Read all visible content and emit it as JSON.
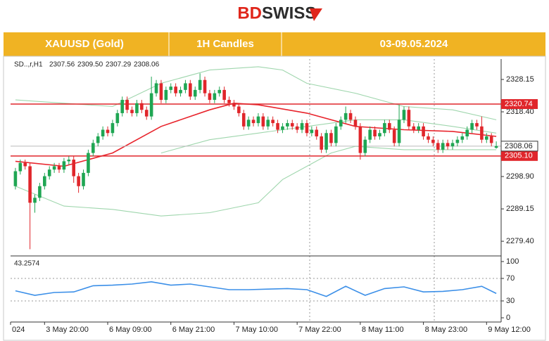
{
  "header": {
    "brand": [
      "BD",
      "SWISS"
    ],
    "cells": [
      "XAUUSD (Gold)",
      "1H Candles",
      "03-09.05.2024"
    ]
  },
  "chart_data": {
    "type": "candlestick",
    "symbol_label": "SD..,r,H1",
    "last_candle_label": [
      "2307.56",
      "2309.50",
      "2307.29",
      "2308.06"
    ],
    "up_color": "#1fa653",
    "down_color": "#e0262b",
    "xlim": [
      -1,
      100
    ],
    "xticks": [
      {
        "value": -1,
        "label": "024"
      },
      {
        "value": 6,
        "label": "3 May 20:00"
      },
      {
        "value": 19,
        "label": "6 May 09:00"
      },
      {
        "value": 32,
        "label": "6 May 21:00"
      },
      {
        "value": 45,
        "label": "7 May 10:00"
      },
      {
        "value": 58,
        "label": "7 May 22:00"
      },
      {
        "value": 71,
        "label": "8 May 11:00"
      },
      {
        "value": 84,
        "label": "8 May 23:00"
      },
      {
        "value": 97,
        "label": "9 May 12:00"
      }
    ],
    "ylim": [
      2275.4,
      2334.3
    ],
    "yticks": [
      2328.15,
      {
        "value": 2318.4,
        "label": "2318.40"
      },
      {
        "value": 2298.9,
        "label": "2298.90"
      },
      2289.15,
      {
        "value": 2279.4,
        "label": "2279.40"
      }
    ],
    "levels": [
      2320.74,
      {
        "value": 2305.1,
        "label": "2305.10"
      }
    ],
    "level_color": "#e0262b",
    "open": [
      2296,
      2300.5,
      2303,
      2302,
      2291,
      2292.5,
      2296,
      2299,
      2301,
      2302,
      2301,
      2303.5,
      2304,
      2299,
      2296,
      2300,
      2306,
      2309,
      2311,
      2313,
      2312,
      2315,
      2318,
      2322,
      2319,
      2318,
      2321,
      2319,
      2317,
      2324,
      2327,
      2322,
      2325,
      2326,
      2324,
      2325,
      2327,
      2323,
      2325,
      2328,
      2324,
      2322,
      2324,
      2325,
      2322,
      2321,
      2320,
      2318,
      2314,
      2316,
      2315,
      2317,
      2314,
      2316,
      2315,
      2313,
      2314,
      2315,
      2314,
      2313,
      2315,
      2312,
      2313,
      2311,
      2307,
      2312,
      2309,
      2314,
      2316,
      2318,
      2316,
      2314,
      2306,
      2310,
      2313,
      2311,
      2312,
      2315,
      2313,
      2309,
      2316,
      2319,
      2314,
      2313,
      2314,
      2311,
      2310,
      2309,
      2307,
      2309,
      2308,
      2309,
      2310,
      2311,
      2313,
      2315,
      2314,
      2310,
      2311,
      2307.56
    ],
    "high": [
      2301.5,
      2304,
      2304,
      2303,
      2293.5,
      2297,
      2300,
      2302,
      2303,
      2303,
      2304.5,
      2305,
      2305,
      2300,
      2301,
      2307,
      2310,
      2312,
      2314,
      2314,
      2316,
      2319,
      2323,
      2323,
      2320,
      2322,
      2322,
      2320,
      2329,
      2328,
      2328,
      2326,
      2327,
      2327,
      2326,
      2328,
      2328,
      2326,
      2330,
      2329,
      2325,
      2325,
      2326,
      2326,
      2323,
      2322,
      2321,
      2319,
      2317,
      2317,
      2318,
      2318,
      2317,
      2317,
      2316,
      2315,
      2316,
      2316,
      2315,
      2316,
      2316,
      2314,
      2314,
      2312,
      2313,
      2313,
      2315,
      2317,
      2320,
      2319,
      2317,
      2315,
      2311,
      2314,
      2314,
      2313,
      2316,
      2316,
      2314,
      2320.5,
      2320,
      2320,
      2315,
      2315,
      2315,
      2312,
      2311,
      2310,
      2310,
      2310,
      2310,
      2311,
      2312,
      2314,
      2316,
      2316,
      2317,
      2312,
      2312,
      2309.5
    ],
    "low": [
      2295,
      2299.5,
      2301,
      2277,
      2288,
      2291.5,
      2295,
      2298,
      2300,
      2300,
      2300,
      2302.5,
      2297,
      2294,
      2295,
      2299,
      2305,
      2308,
      2310,
      2311,
      2311,
      2314,
      2317,
      2318,
      2317,
      2317,
      2318,
      2316,
      2316,
      2323,
      2321,
      2321,
      2324,
      2323,
      2323,
      2324,
      2322,
      2322,
      2324,
      2323,
      2321,
      2321,
      2323,
      2321,
      2320,
      2319,
      2317,
      2313,
      2313,
      2314,
      2314,
      2313,
      2313,
      2314,
      2312,
      2312,
      2313,
      2313,
      2312,
      2312,
      2311,
      2311,
      2310,
      2306,
      2306,
      2308,
      2308,
      2313,
      2315,
      2315,
      2313,
      2304,
      2305,
      2309,
      2310,
      2310,
      2311,
      2312,
      2308,
      2308,
      2315,
      2313,
      2312,
      2312,
      2310,
      2309,
      2308,
      2306,
      2306,
      2307,
      2307,
      2308,
      2309,
      2310,
      2312,
      2313,
      2309,
      2309,
      2308,
      2307.29
    ],
    "close": [
      2300.5,
      2303,
      2302,
      2291,
      2292.5,
      2296,
      2299,
      2301,
      2302,
      2301,
      2303.5,
      2304,
      2299,
      2296,
      2300,
      2306,
      2309,
      2311,
      2313,
      2312,
      2315,
      2318,
      2322,
      2319,
      2318,
      2321,
      2319,
      2317,
      2324,
      2327,
      2322,
      2325,
      2326,
      2324,
      2325,
      2327,
      2323,
      2325,
      2328,
      2324,
      2322,
      2324,
      2325,
      2322,
      2321,
      2320,
      2318,
      2314,
      2316,
      2315,
      2317,
      2314,
      2316,
      2315,
      2313,
      2314,
      2315,
      2314,
      2313,
      2315,
      2312,
      2313,
      2311,
      2307,
      2312,
      2309,
      2314,
      2316,
      2318,
      2316,
      2314,
      2306,
      2310,
      2313,
      2311,
      2312,
      2315,
      2313,
      2309,
      2316,
      2319,
      2314,
      2313,
      2314,
      2311,
      2310,
      2309,
      2307,
      2309,
      2308,
      2309,
      2310,
      2311,
      2313,
      2315,
      2314,
      2310,
      2311,
      2309,
      2308.06
    ],
    "overlays": [
      {
        "color": "#9fd6ad",
        "x": [
          0,
          10,
          20,
          30,
          40,
          50,
          55,
          60,
          70,
          80,
          90,
          99
        ],
        "values": [
          2322,
          2321,
          2320,
          2327,
          2331,
          2332,
          2331,
          2327,
          2324,
          2320,
          2319,
          2316
        ]
      },
      {
        "color": "#9fd6ad",
        "x": [
          30,
          40,
          50,
          60,
          70,
          80,
          90,
          99
        ],
        "values": [
          2306,
          2310,
          2312,
          2314,
          2316,
          2316,
          2314,
          2312
        ]
      },
      {
        "color": "#9fd6ad",
        "x": [
          0,
          10,
          20,
          30,
          40,
          50,
          55,
          60,
          65,
          70,
          80,
          90,
          99
        ],
        "values": [
          2296,
          2290,
          2289,
          2287,
          2288,
          2291,
          2298,
          2302,
          2306,
          2308,
          2307,
          2307,
          2307
        ]
      },
      {
        "color": "#e8242c",
        "x": [
          0,
          10,
          20,
          30,
          40,
          45,
          50,
          60,
          70,
          80,
          90,
          99
        ],
        "values": [
          2303.5,
          2302,
          2306,
          2314,
          2319,
          2321,
          2320.5,
          2318,
          2314,
          2313,
          2312.5,
          2311
        ]
      }
    ],
    "rsi": {
      "color": "#3b8fe8",
      "ylim": [
        -7.5,
        107.5
      ],
      "yticks": [
        100,
        70,
        30,
        0
      ],
      "x": [
        0,
        4,
        8,
        12,
        16,
        20,
        24,
        28,
        32,
        36,
        40,
        44,
        48,
        52,
        56,
        60,
        64,
        68,
        72,
        76,
        80,
        84,
        88,
        92,
        96,
        99
      ],
      "values": [
        48,
        40,
        45,
        46,
        57,
        58,
        60,
        64,
        58,
        60,
        55,
        50,
        50,
        51,
        52,
        50,
        38,
        56,
        40,
        52,
        55,
        46,
        47,
        50,
        56,
        43.2574
      ]
    }
  }
}
